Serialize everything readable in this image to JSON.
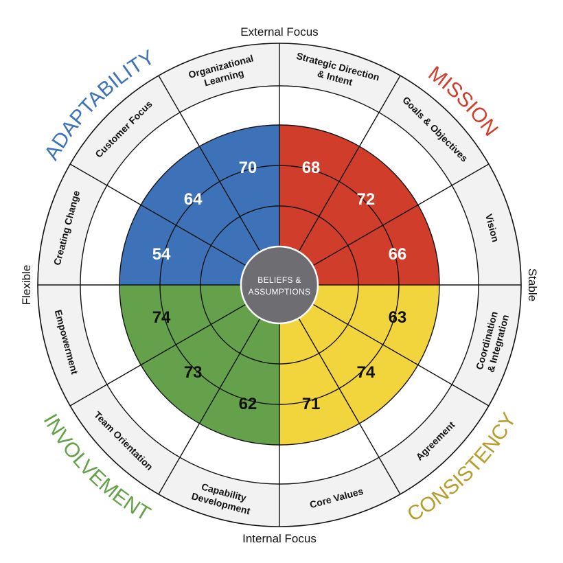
{
  "axes": {
    "top": "External Focus",
    "bottom": "Internal Focus",
    "left": "Flexible",
    "right": "Stable"
  },
  "center": {
    "line1": "BELIEFS &",
    "line2": "ASSUMPTIONS"
  },
  "colors": {
    "adaptability": "#3d72b9",
    "mission": "#d13d2b",
    "consistency": "#f2d53d",
    "involvement": "#65a14a",
    "consistency_label": "#b59d2c",
    "center": "#6e6d72",
    "segment_bg": "#f2f2f2",
    "lines": "#111111"
  },
  "traits": [
    {
      "name": "ADAPTABILITY",
      "key": "adaptability",
      "indexes": [
        {
          "label": [
            "Organizational",
            "Learning"
          ],
          "score": 70
        },
        {
          "label": [
            "Customer Focus"
          ],
          "score": 64
        },
        {
          "label": [
            "Creating Change"
          ],
          "score": 54
        }
      ]
    },
    {
      "name": "MISSION",
      "key": "mission",
      "indexes": [
        {
          "label": [
            "Strategic Direction",
            "& Intent"
          ],
          "score": 68
        },
        {
          "label": [
            "Goals & Objectives"
          ],
          "score": 72
        },
        {
          "label": [
            "Vision"
          ],
          "score": 66
        }
      ]
    },
    {
      "name": "CONSISTENCY",
      "key": "consistency",
      "indexes": [
        {
          "label": [
            "Coordination",
            "& Integration"
          ],
          "score": 63
        },
        {
          "label": [
            "Agreement"
          ],
          "score": 74
        },
        {
          "label": [
            "Core Values"
          ],
          "score": 71
        }
      ]
    },
    {
      "name": "INVOLVEMENT",
      "key": "involvement",
      "indexes": [
        {
          "label": [
            "Capability",
            "Development"
          ],
          "score": 62
        },
        {
          "label": [
            "Team Orientation"
          ],
          "score": 73
        },
        {
          "label": [
            "Empowerment"
          ],
          "score": 74
        }
      ]
    }
  ]
}
